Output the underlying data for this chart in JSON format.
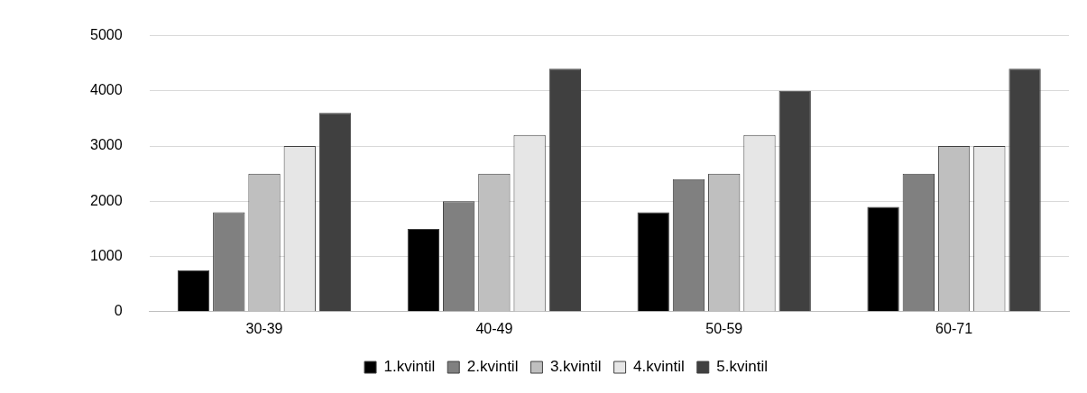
{
  "chart_data": {
    "type": "bar",
    "categories": [
      "30-39",
      "40-49",
      "50-59",
      "60-71"
    ],
    "series": [
      {
        "name": "1.kvintil",
        "color": "#000000",
        "values": [
          750,
          1500,
          1800,
          1900
        ]
      },
      {
        "name": "2.kvintil",
        "color": "#808080",
        "values": [
          1800,
          2000,
          2400,
          2500
        ]
      },
      {
        "name": "3.kvintil",
        "color": "#bfbfbf",
        "values": [
          2500,
          2500,
          2500,
          3000
        ]
      },
      {
        "name": "4.kvintil",
        "color": "#e6e6e6",
        "values": [
          3000,
          3200,
          3200,
          3000
        ]
      },
      {
        "name": "5.kvintil",
        "color": "#404040",
        "values": [
          3600,
          4400,
          4000,
          4400
        ]
      }
    ],
    "ylim": [
      0,
      5000
    ],
    "yticks": [
      0,
      1000,
      2000,
      3000,
      4000,
      5000
    ],
    "grid": "y",
    "legend": "bottom"
  }
}
